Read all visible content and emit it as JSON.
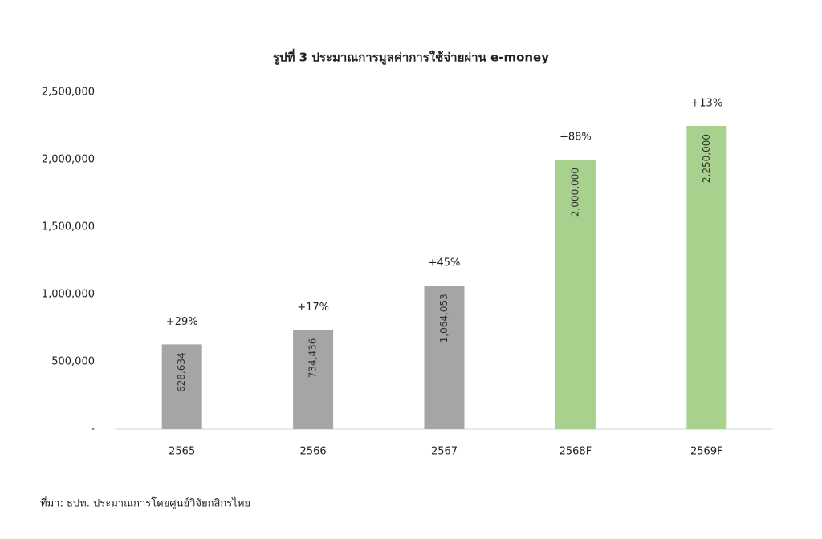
{
  "chart_data": {
    "type": "bar",
    "title": "รูปที่ 3 ประมาณการมูลค่าการใช้จ่ายผ่าน e-money",
    "categories": [
      "2565",
      "2566",
      "2567",
      "2568F",
      "2569F"
    ],
    "values": [
      628634,
      734436,
      1064053,
      2000000,
      2250000
    ],
    "value_labels": [
      "628,634",
      "734,436",
      "1,064,053",
      "2,000,000",
      "2,250,000"
    ],
    "annotations": [
      "+29%",
      "+17%",
      "+45%",
      "+88%",
      "+13%"
    ],
    "colors": [
      "#a5a5a5",
      "#a5a5a5",
      "#a5a5a5",
      "#a9d18e",
      "#a9d18e"
    ],
    "ylim": [
      0,
      2500000
    ],
    "yticks": [
      {
        "value": 0,
        "label": "-"
      },
      {
        "value": 500000,
        "label": "500,000"
      },
      {
        "value": 1000000,
        "label": "1,000,000"
      },
      {
        "value": 1500000,
        "label": "1,500,000"
      },
      {
        "value": 2000000,
        "label": "2,000,000"
      },
      {
        "value": 2500000,
        "label": "2,500,000"
      }
    ],
    "grid": false,
    "source": "ที่มา: ธปท. ประมาณการโดยศูนย์วิจัยกสิกรไทย"
  }
}
